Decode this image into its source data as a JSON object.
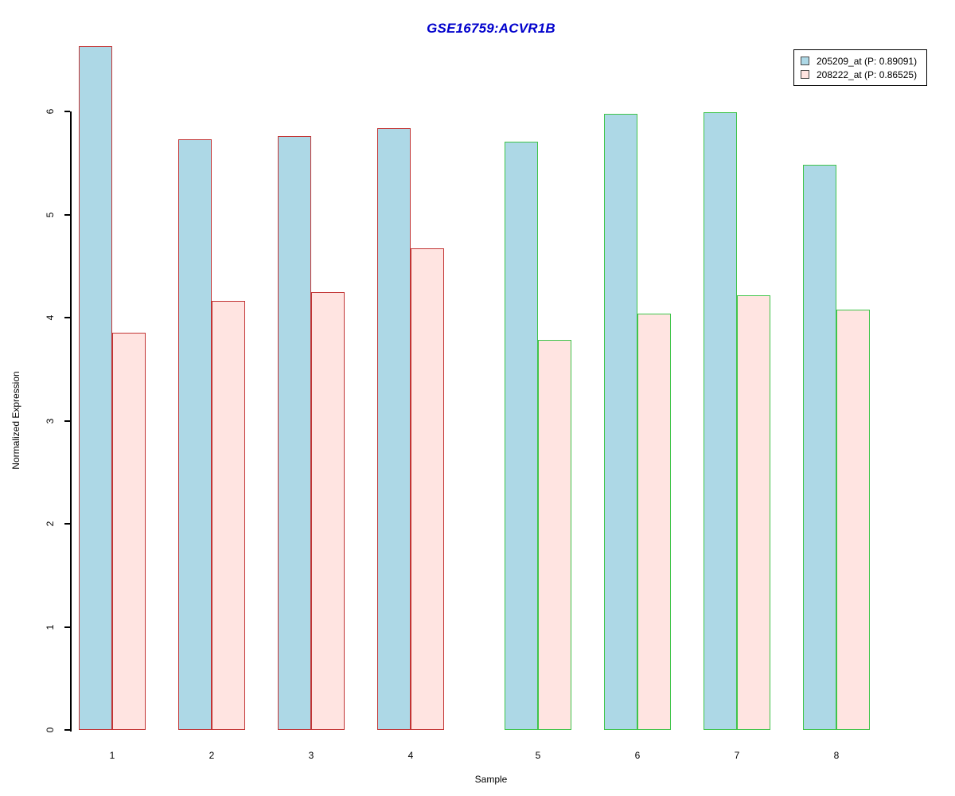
{
  "title": "GSE16759:ACVR1B",
  "colors": {
    "title": "#0000CC",
    "series1_fill": "#ADD8E6",
    "series2_fill": "#FFE4E1",
    "group_red_border": "#C23434",
    "group_green_border": "#3FC44A",
    "axis": "#000000",
    "legend_border": "#000000"
  },
  "legend": {
    "items": [
      {
        "label": "205209_at (P: 0.89091)",
        "swatch_color": "#ADD8E6"
      },
      {
        "label": "208222_at (P: 0.86525)",
        "swatch_color": "#FFE4E1"
      }
    ]
  },
  "chart_data": {
    "type": "bar",
    "title": "GSE16759:ACVR1B",
    "xlabel": "Sample",
    "ylabel": "Normalized Expression",
    "ylim": [
      0,
      6.63
    ],
    "yticks": [
      0,
      1,
      2,
      3,
      4,
      5,
      6
    ],
    "grid": false,
    "legend_position": "top-right",
    "categories": [
      "1",
      "2",
      "3",
      "4",
      "5",
      "6",
      "7",
      "8"
    ],
    "series": [
      {
        "name": "205209_at (P: 0.89091)",
        "probe": "205209_at",
        "p_value": 0.89091,
        "fill": "#ADD8E6",
        "values": [
          6.63,
          5.73,
          5.76,
          5.84,
          5.71,
          5.98,
          5.99,
          5.48
        ]
      },
      {
        "name": "208222_at (P: 0.86525)",
        "probe": "208222_at",
        "p_value": 0.86525,
        "fill": "#FFE4E1",
        "values": [
          3.85,
          4.16,
          4.25,
          4.67,
          3.78,
          4.04,
          4.22,
          4.08
        ]
      }
    ],
    "group_border_colors": [
      "#C23434",
      "#C23434",
      "#C23434",
      "#C23434",
      "#3FC44A",
      "#3FC44A",
      "#3FC44A",
      "#3FC44A"
    ]
  }
}
